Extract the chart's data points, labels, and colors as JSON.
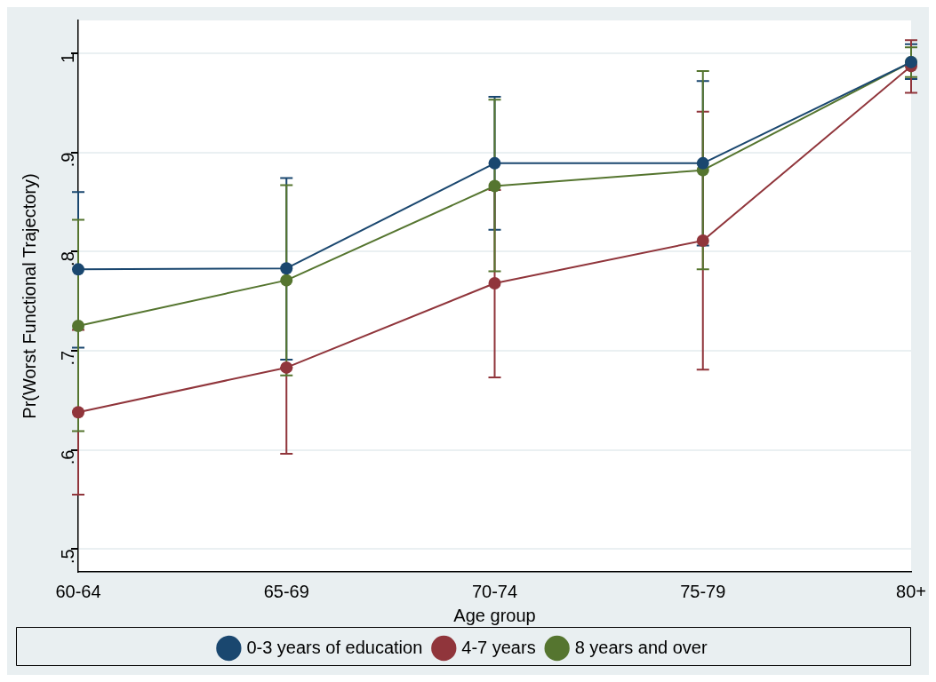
{
  "chart_data": {
    "type": "line",
    "xlabel": "Age group",
    "ylabel": "Pr(Worst Functional Trajectory)",
    "categories": [
      "60-64",
      "65-69",
      "70-74",
      "75-79",
      "80+"
    ],
    "series": [
      {
        "name": "0-3 years of education",
        "color": "#1a476f",
        "values": [
          0.782,
          0.783,
          0.889,
          0.889,
          0.991
        ],
        "errors": [
          [
            0.703,
            0.86
          ],
          [
            0.691,
            0.874
          ],
          [
            0.822,
            0.956
          ],
          [
            0.806,
            0.972
          ],
          [
            0.974,
            1.009
          ]
        ]
      },
      {
        "name": "4-7 years",
        "color": "#90353b",
        "values": [
          0.638,
          0.683,
          0.768,
          0.811,
          0.987
        ],
        "errors": [
          [
            0.555,
            0.721
          ],
          [
            0.596,
            0.683
          ],
          [
            0.673,
            0.862
          ],
          [
            0.681,
            0.941
          ],
          [
            0.96,
            1.013
          ]
        ]
      },
      {
        "name": "8 years and over",
        "color": "#55752f",
        "values": [
          0.725,
          0.771,
          0.866,
          0.882,
          0.991
        ],
        "errors": [
          [
            0.619,
            0.832
          ],
          [
            0.675,
            0.867
          ],
          [
            0.78,
            0.953
          ],
          [
            0.782,
            0.982
          ],
          [
            0.976,
            1.006
          ]
        ]
      }
    ],
    "ylim": [
      0.477,
      1.033
    ],
    "yticks": [
      {
        "value": 0.5,
        "label": ".5"
      },
      {
        "value": 0.6,
        "label": ".6"
      },
      {
        "value": 0.7,
        "label": ".7"
      },
      {
        "value": 0.8,
        "label": ".8"
      },
      {
        "value": 0.9,
        "label": ".9"
      },
      {
        "value": 1,
        "label": "1"
      }
    ],
    "grid": "y",
    "legend": "bottom",
    "marker": "circle",
    "line_style": "solid"
  }
}
